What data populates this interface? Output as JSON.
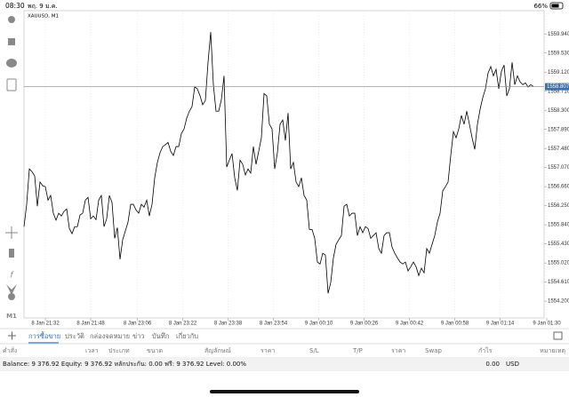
{
  "status_bar": {
    "time": "08:30",
    "date": "พฤ. 9 ม.ค.",
    "battery": "66%"
  },
  "chart_data": {
    "type": "line",
    "title": "XAUUSD, M1",
    "timeframe": "M1",
    "color": "#000000",
    "grid": true,
    "current_price": 1558.807,
    "values": [
      1555.8,
      1556.28,
      1557.04,
      1556.98,
      1556.89,
      1556.24,
      1556.76,
      1556.68,
      1556.66,
      1556.37,
      1556.47,
      1556.09,
      1555.94,
      1556.09,
      1556.03,
      1556.13,
      1556.18,
      1555.76,
      1555.65,
      1555.8,
      1555.8,
      1556.05,
      1556.09,
      1556.37,
      1556.43,
      1555.97,
      1556.03,
      1555.95,
      1556.37,
      1556.47,
      1555.8,
      1555.97,
      1556.47,
      1556.32,
      1555.55,
      1555.78,
      1555.1,
      1555.52,
      1555.71,
      1555.9,
      1556.28,
      1556.28,
      1556.16,
      1556.09,
      1556.28,
      1556.22,
      1556.37,
      1556.03,
      1556.28,
      1556.85,
      1557.18,
      1557.39,
      1557.52,
      1557.56,
      1557.61,
      1557.42,
      1557.33,
      1557.52,
      1557.52,
      1557.8,
      1557.9,
      1558.13,
      1558.28,
      1558.38,
      1558.8,
      1558.76,
      1558.61,
      1558.42,
      1558.51,
      1559.33,
      1559.98,
      1558.85,
      1558.28,
      1558.28,
      1558.53,
      1559.04,
      1557.08,
      1557.23,
      1557.37,
      1556.85,
      1556.58,
      1557.23,
      1557.14,
      1556.91,
      1557.04,
      1556.95,
      1557.52,
      1557.14,
      1557.42,
      1557.71,
      1558.66,
      1558.61,
      1558.0,
      1557.9,
      1557.04,
      1557.39,
      1558.0,
      1558.09,
      1557.65,
      1558.24,
      1557.04,
      1557.18,
      1556.76,
      1556.66,
      1556.85,
      1556.47,
      1556.37,
      1555.74,
      1555.74,
      1555.55,
      1555.04,
      1555.0,
      1555.23,
      1555.19,
      1554.37,
      1554.6,
      1555.13,
      1555.42,
      1555.52,
      1555.61,
      1556.24,
      1556.28,
      1556.03,
      1556.09,
      1556.09,
      1555.61,
      1555.8,
      1555.67,
      1555.8,
      1555.76,
      1555.55,
      1555.61,
      1555.67,
      1555.33,
      1555.23,
      1555.61,
      1555.67,
      1555.67,
      1555.36,
      1555.23,
      1555.13,
      1555.04,
      1555.0,
      1555.04,
      1554.85,
      1554.94,
      1555.04,
      1554.94,
      1554.75,
      1554.91,
      1554.81,
      1555.33,
      1555.23,
      1555.42,
      1555.61,
      1555.9,
      1556.09,
      1556.57,
      1556.66,
      1556.76,
      1557.33,
      1557.84,
      1557.71,
      1557.9,
      1558.19,
      1558.0,
      1558.28,
      1558.0,
      1557.71,
      1557.46,
      1558.0,
      1558.32,
      1558.57,
      1558.76,
      1559.1,
      1559.24,
      1559.04,
      1559.18,
      1558.76,
      1559.14,
      1559.27,
      1558.61,
      1558.76,
      1559.33,
      1558.85,
      1559.04,
      1558.91,
      1558.85,
      1558.89,
      1558.8,
      1558.85,
      1558.81
    ],
    "xlim": [
      0,
      195
    ],
    "xticks": [
      {
        "value": 8,
        "label": "8 Jan 21:32"
      },
      {
        "value": 25,
        "label": "8 Jan 21:48"
      },
      {
        "value": 42.5,
        "label": "8 Jan 23:06"
      },
      {
        "value": 59.5,
        "label": "8 Jan 23:22"
      },
      {
        "value": 76.5,
        "label": "8 Jan 23:38"
      },
      {
        "value": 93.5,
        "label": "8 Jan 23:54"
      },
      {
        "value": 110.5,
        "label": "9 Jan 00:10"
      },
      {
        "value": 127.5,
        "label": "9 Jan 00:26"
      },
      {
        "value": 144.5,
        "label": "9 Jan 00:42"
      },
      {
        "value": 161.5,
        "label": "9 Jan 00:58"
      },
      {
        "value": 178.5,
        "label": "9 Jan 01:14"
      },
      {
        "value": 196,
        "label": "9 Jan 01:30"
      }
    ],
    "ylim": [
      1553.84,
      1560.44
    ],
    "yticks": [
      {
        "value": 1559.94,
        "label": "1559.940"
      },
      {
        "value": 1559.53,
        "label": "1559.530"
      },
      {
        "value": 1559.12,
        "label": "1559.120"
      },
      {
        "value": 1558.71,
        "label": "1558.710"
      },
      {
        "value": 1558.3,
        "label": "1558.300"
      },
      {
        "value": 1557.89,
        "label": "1557.890"
      },
      {
        "value": 1557.48,
        "label": "1557.480"
      },
      {
        "value": 1557.07,
        "label": "1557.070"
      },
      {
        "value": 1556.66,
        "label": "1556.660"
      },
      {
        "value": 1556.25,
        "label": "1556.250"
      },
      {
        "value": 1555.84,
        "label": "1555.840"
      },
      {
        "value": 1555.43,
        "label": "1555.430"
      },
      {
        "value": 1555.02,
        "label": "1555.020"
      },
      {
        "value": 1554.61,
        "label": "1554.610"
      },
      {
        "value": 1554.2,
        "label": "1554.200"
      }
    ]
  },
  "tabs": [
    "การซื้อขาย",
    "ประวัติ",
    "กล่องจดหมาย",
    "ข่าว",
    "บันทึก",
    "เกี่ยวกับ"
  ],
  "table": {
    "columns": [
      "คำสั่ง",
      "เวลา",
      "ประเภท",
      "ขนาด",
      "สัญลักษณ์",
      "ราคา",
      "S/L",
      "T/P",
      "ราคา",
      "Swap",
      "กำไร",
      "หมายเหตุ"
    ]
  },
  "account": {
    "summary": "Balance: 9 376.92 Equity: 9 376.92 หลักประกัน: 0.00 ฟรี: 9 376.92 Level: 0.00%",
    "profit": "0.00",
    "currency": "USD"
  }
}
